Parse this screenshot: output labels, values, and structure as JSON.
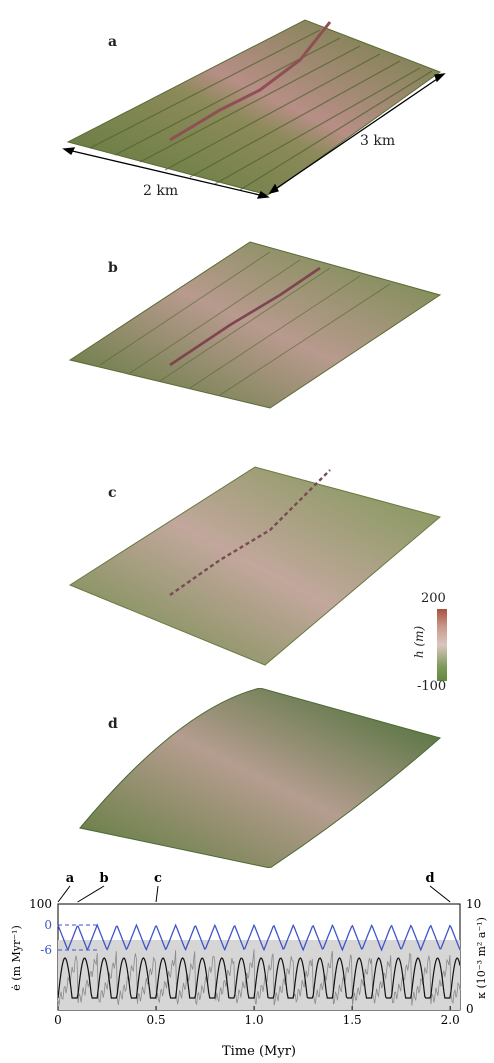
{
  "panels": {
    "a": {
      "label": "a"
    },
    "b": {
      "label": "b"
    },
    "c": {
      "label": "c"
    },
    "d": {
      "label": "d"
    }
  },
  "dimensions": {
    "width_label": "2 km",
    "length_label": "3 km"
  },
  "colorbar": {
    "max_label": "200",
    "min_label": "-100",
    "title": "h (m)",
    "colors": {
      "top": "#a8523f",
      "upper": "#c99a8c",
      "mid": "#d9c6bd",
      "lower": "#7f9a5b",
      "bottom": "#5f8a3c"
    }
  },
  "colors": {
    "ridge": "#8e4f55",
    "terrain_green": "#6f7f45",
    "terrain_light": "#c9a29a",
    "blue_series": "#3f55c8",
    "black_series": "#111111",
    "gray_series": "#8a8a8a",
    "shade": "#d0d0d0"
  },
  "chart_data": {
    "type": "line",
    "xlabel": "Time (Myr)",
    "ylabel_left": "ė (m Myr⁻¹)",
    "ylabel_right": "κ (10⁻³ m² a⁻¹)",
    "x_ticks": [
      "0",
      "0.5",
      "1.0",
      "1.5",
      "2.0"
    ],
    "y_left_ticks": [
      "100",
      "0",
      "-6"
    ],
    "y_right_ticks": [
      "10",
      "0"
    ],
    "xlim": [
      0,
      2.05
    ],
    "markers": [
      {
        "label": "a",
        "time": 0.0
      },
      {
        "label": "b",
        "time": 0.1
      },
      {
        "label": "c",
        "time": 0.5
      },
      {
        "label": "d",
        "time": 2.0
      }
    ],
    "series": [
      {
        "color": "blue",
        "period": 0.1,
        "y_min": -6,
        "y_max": 0
      },
      {
        "color": "black",
        "period": 0.1,
        "kappa_min": 1,
        "kappa_max": 5
      },
      {
        "color": "gray",
        "period": 0.1
      }
    ]
  }
}
